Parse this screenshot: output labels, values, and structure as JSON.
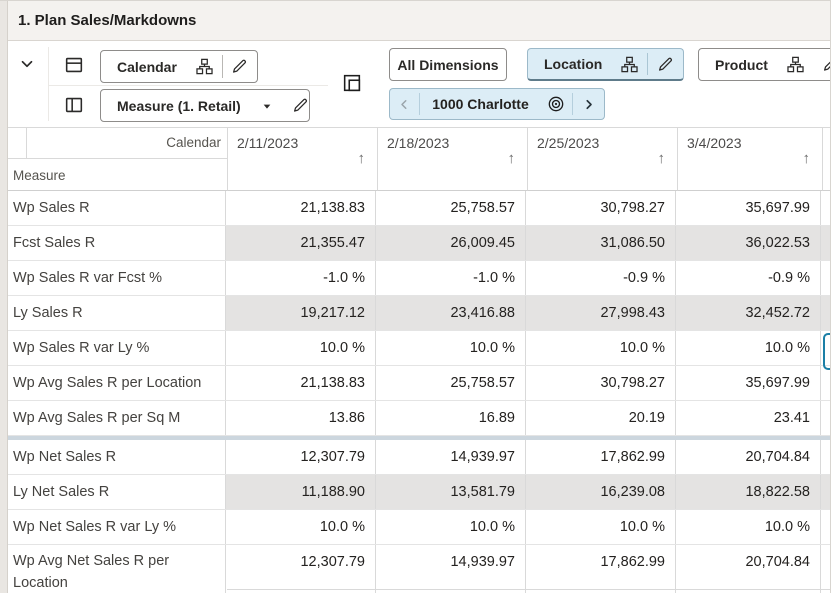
{
  "title": "1. Plan Sales/Markdowns",
  "toolbar": {
    "rows_axis_label": "Calendar",
    "cols_axis_label": "Measure (1. Retail)",
    "all_dimensions_label": "All Dimensions",
    "location_label": "Location",
    "product_label": "Product",
    "page_nav": {
      "current_item": "1000 Charlotte"
    }
  },
  "icons": {
    "sort_ascending": "↑"
  },
  "grid": {
    "corner_top_label": "Calendar",
    "corner_bottom_label": "Measure",
    "columns": [
      "2/11/2023",
      "2/18/2023",
      "2/25/2023",
      "3/4/2023"
    ],
    "rows": [
      {
        "label": "Wp Sales R",
        "shaded": false,
        "values": [
          "21,138.83",
          "25,758.57",
          "30,798.27",
          "35,697.99"
        ]
      },
      {
        "label": "Fcst Sales R",
        "shaded": true,
        "values": [
          "21,355.47",
          "26,009.45",
          "31,086.50",
          "36,022.53"
        ]
      },
      {
        "label": "Wp Sales R var Fcst %",
        "shaded": false,
        "values": [
          "-1.0 %",
          "-1.0 %",
          "-0.9 %",
          "-0.9 %"
        ]
      },
      {
        "label": "Ly Sales R",
        "shaded": true,
        "values": [
          "19,217.12",
          "23,416.88",
          "27,998.43",
          "32,452.72"
        ]
      },
      {
        "label": "Wp Sales R var Ly %",
        "shaded": false,
        "values": [
          "10.0 %",
          "10.0 %",
          "10.0 %",
          "10.0 %"
        ]
      },
      {
        "label": "Wp Avg Sales R per Location",
        "shaded": false,
        "values": [
          "21,138.83",
          "25,758.57",
          "30,798.27",
          "35,697.99"
        ]
      },
      {
        "label": "Wp Avg Sales R per Sq M",
        "shaded": false,
        "values": [
          "13.86",
          "16.89",
          "20.19",
          "23.41"
        ]
      },
      {
        "label": "Wp Net Sales R",
        "shaded": false,
        "values": [
          "12,307.79",
          "14,939.97",
          "17,862.99",
          "20,704.84"
        ]
      },
      {
        "label": "Ly Net Sales R",
        "shaded": true,
        "values": [
          "11,188.90",
          "13,581.79",
          "16,239.08",
          "18,822.58"
        ]
      },
      {
        "label": "Wp Net Sales R var Ly %",
        "shaded": false,
        "values": [
          "10.0 %",
          "10.0 %",
          "10.0 %",
          "10.0 %"
        ]
      },
      {
        "label": "Wp Avg Net Sales R per Location",
        "shaded": false,
        "values": [
          "12,307.79",
          "14,939.97",
          "17,862.99",
          "20,704.84"
        ]
      }
    ],
    "group_separator_after_row": 6,
    "tall_row_index": 10,
    "selected_cell_row_index": 4
  },
  "colors": {
    "accent_blue_fill": "#dcedf6",
    "accent_blue_border": "#9cb9c9",
    "selection_border": "#1b7fa6",
    "shaded_cell": "#e4e3e2",
    "group_separator": "#ccd6de",
    "title_bar_bg": "#f4f2ef"
  }
}
